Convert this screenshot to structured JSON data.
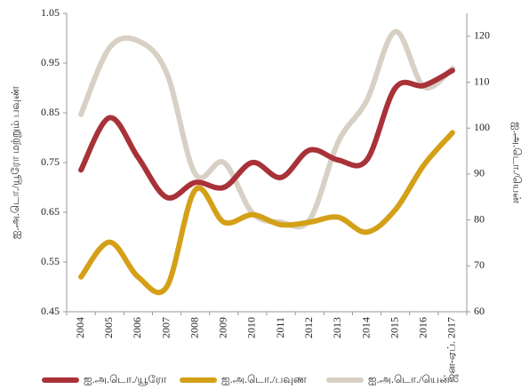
{
  "chart_data": {
    "type": "line",
    "categories": [
      "2004",
      "2005",
      "2006",
      "2007",
      "2008",
      "2009",
      "2010",
      "2011",
      "2012",
      "2013",
      "2014",
      "2015",
      "2016",
      "ஜன-ஏப். 2017"
    ],
    "ylabel": "ஐ.அ.டொ./யூரோ மற்றும் பவுண்",
    "y2label": "ஐ.அ.டொ./யென்",
    "ylim": [
      0.45,
      1.05
    ],
    "yticks": [
      0.45,
      0.55,
      0.65,
      0.75,
      0.85,
      0.95,
      1.05
    ],
    "y2lim": [
      60,
      125
    ],
    "y2ticks": [
      60,
      70,
      80,
      90,
      100,
      110,
      120
    ],
    "series": [
      {
        "name": "ஐ.அ.டொ./யூரோ",
        "color": "#a83238",
        "values": [
          0.735,
          0.84,
          0.76,
          0.68,
          0.71,
          0.7,
          0.75,
          0.72,
          0.775,
          0.755,
          0.755,
          0.9,
          0.905,
          0.935
        ]
      },
      {
        "name": "ஐ.அ.டொ./பவுண",
        "color": "#d4a017",
        "values": [
          0.52,
          0.59,
          0.52,
          0.5,
          0.695,
          0.63,
          0.645,
          0.625,
          0.63,
          0.64,
          0.61,
          0.655,
          0.745,
          0.81
        ]
      },
      {
        "name": "ஐ.அ.டொ./யென்",
        "color": "#d8d0c4",
        "axis": "y2",
        "values": [
          103,
          117.5,
          119,
          112,
          90,
          92.5,
          81.5,
          79.5,
          80,
          97,
          106,
          121,
          109,
          113
        ]
      }
    ]
  }
}
